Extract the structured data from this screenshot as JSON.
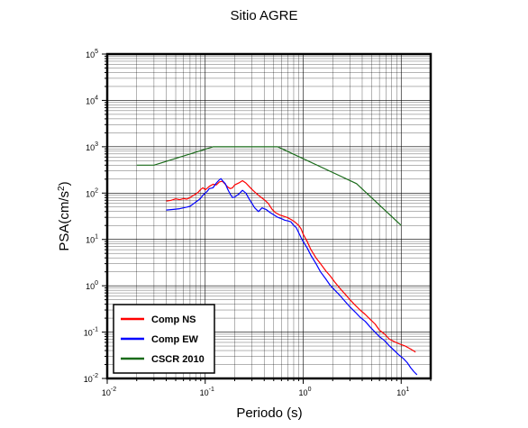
{
  "chart_data": {
    "type": "line",
    "title": "Sitio AGRE",
    "xlabel": "Periodo (s)",
    "ylabel_base": "PSA(cm/s",
    "ylabel_sup": "2",
    "ylabel_close": ")",
    "x_scale": "log",
    "y_scale": "log",
    "xlim": [
      0.01,
      20
    ],
    "ylim": [
      0.01,
      100000
    ],
    "grid": true,
    "legend_placement": "bottom-left",
    "x_ticks": [
      {
        "value": 0.01,
        "base": "10",
        "exp": "-2"
      },
      {
        "value": 0.1,
        "base": "10",
        "exp": "-1"
      },
      {
        "value": 1,
        "base": "10",
        "exp": "0"
      },
      {
        "value": 10,
        "base": "10",
        "exp": "1"
      }
    ],
    "y_ticks": [
      {
        "value": 0.01,
        "base": "10",
        "exp": "-2"
      },
      {
        "value": 0.1,
        "base": "10",
        "exp": "-1"
      },
      {
        "value": 1,
        "base": "10",
        "exp": "0"
      },
      {
        "value": 10,
        "base": "10",
        "exp": "1"
      },
      {
        "value": 100,
        "base": "10",
        "exp": "2"
      },
      {
        "value": 1000,
        "base": "10",
        "exp": "3"
      },
      {
        "value": 10000,
        "base": "10",
        "exp": "4"
      },
      {
        "value": 100000,
        "base": "10",
        "exp": "5"
      }
    ],
    "series": [
      {
        "name": "Comp NS",
        "color": "#ff0000",
        "points": [
          [
            0.04,
            67
          ],
          [
            0.045,
            70
          ],
          [
            0.05,
            75
          ],
          [
            0.055,
            72
          ],
          [
            0.06,
            76
          ],
          [
            0.065,
            74
          ],
          [
            0.07,
            80
          ],
          [
            0.075,
            88
          ],
          [
            0.08,
            95
          ],
          [
            0.085,
            105
          ],
          [
            0.09,
            120
          ],
          [
            0.095,
            130
          ],
          [
            0.1,
            118
          ],
          [
            0.105,
            128
          ],
          [
            0.11,
            140
          ],
          [
            0.12,
            155
          ],
          [
            0.13,
            150
          ],
          [
            0.14,
            175
          ],
          [
            0.15,
            180
          ],
          [
            0.16,
            155
          ],
          [
            0.17,
            135
          ],
          [
            0.18,
            125
          ],
          [
            0.19,
            130
          ],
          [
            0.2,
            150
          ],
          [
            0.22,
            165
          ],
          [
            0.24,
            185
          ],
          [
            0.26,
            165
          ],
          [
            0.28,
            140
          ],
          [
            0.3,
            120
          ],
          [
            0.33,
            100
          ],
          [
            0.36,
            85
          ],
          [
            0.4,
            72
          ],
          [
            0.44,
            60
          ],
          [
            0.48,
            45
          ],
          [
            0.52,
            38
          ],
          [
            0.57,
            34
          ],
          [
            0.62,
            32
          ],
          [
            0.68,
            30
          ],
          [
            0.75,
            27
          ],
          [
            0.82,
            24
          ],
          [
            0.9,
            20
          ],
          [
            0.95,
            17
          ],
          [
            1.0,
            13
          ],
          [
            1.1,
            9
          ],
          [
            1.2,
            6
          ],
          [
            1.35,
            4
          ],
          [
            1.5,
            3
          ],
          [
            1.7,
            2.1
          ],
          [
            1.9,
            1.6
          ],
          [
            2.1,
            1.2
          ],
          [
            2.4,
            0.85
          ],
          [
            2.7,
            0.65
          ],
          [
            3.0,
            0.5
          ],
          [
            3.4,
            0.38
          ],
          [
            3.8,
            0.3
          ],
          [
            4.3,
            0.24
          ],
          [
            4.8,
            0.19
          ],
          [
            5.4,
            0.15
          ],
          [
            6.0,
            0.11
          ],
          [
            6.8,
            0.09
          ],
          [
            7.6,
            0.07
          ],
          [
            8.5,
            0.062
          ],
          [
            9.5,
            0.056
          ],
          [
            11,
            0.05
          ],
          [
            12.5,
            0.043
          ],
          [
            14,
            0.037
          ]
        ]
      },
      {
        "name": "Comp EW",
        "color": "#0000ff",
        "points": [
          [
            0.04,
            43
          ],
          [
            0.045,
            44
          ],
          [
            0.05,
            45
          ],
          [
            0.055,
            46
          ],
          [
            0.06,
            48
          ],
          [
            0.065,
            50
          ],
          [
            0.07,
            52
          ],
          [
            0.075,
            58
          ],
          [
            0.08,
            64
          ],
          [
            0.085,
            70
          ],
          [
            0.09,
            78
          ],
          [
            0.095,
            90
          ],
          [
            0.1,
            100
          ],
          [
            0.105,
            110
          ],
          [
            0.11,
            125
          ],
          [
            0.12,
            130
          ],
          [
            0.13,
            165
          ],
          [
            0.14,
            195
          ],
          [
            0.145,
            205
          ],
          [
            0.15,
            185
          ],
          [
            0.16,
            160
          ],
          [
            0.17,
            120
          ],
          [
            0.18,
            95
          ],
          [
            0.19,
            80
          ],
          [
            0.2,
            82
          ],
          [
            0.22,
            95
          ],
          [
            0.24,
            115
          ],
          [
            0.26,
            100
          ],
          [
            0.28,
            75
          ],
          [
            0.3,
            60
          ],
          [
            0.32,
            48
          ],
          [
            0.35,
            40
          ],
          [
            0.38,
            48
          ],
          [
            0.42,
            44
          ],
          [
            0.46,
            38
          ],
          [
            0.5,
            34
          ],
          [
            0.55,
            30
          ],
          [
            0.6,
            28
          ],
          [
            0.65,
            26
          ],
          [
            0.7,
            25
          ],
          [
            0.75,
            24
          ],
          [
            0.8,
            20
          ],
          [
            0.85,
            18
          ],
          [
            0.9,
            14
          ],
          [
            0.95,
            11
          ],
          [
            1.0,
            9
          ],
          [
            1.1,
            6.5
          ],
          [
            1.2,
            4.5
          ],
          [
            1.35,
            3
          ],
          [
            1.5,
            2
          ],
          [
            1.7,
            1.4
          ],
          [
            1.9,
            1
          ],
          [
            2.1,
            0.8
          ],
          [
            2.4,
            0.6
          ],
          [
            2.7,
            0.45
          ],
          [
            3.0,
            0.35
          ],
          [
            3.4,
            0.27
          ],
          [
            3.8,
            0.21
          ],
          [
            4.3,
            0.17
          ],
          [
            4.8,
            0.13
          ],
          [
            5.4,
            0.1
          ],
          [
            6.0,
            0.08
          ],
          [
            6.8,
            0.065
          ],
          [
            7.6,
            0.05
          ],
          [
            8.5,
            0.04
          ],
          [
            9.5,
            0.032
          ],
          [
            10.5,
            0.027
          ],
          [
            11.5,
            0.022
          ],
          [
            12.5,
            0.017
          ],
          [
            13.5,
            0.014
          ],
          [
            14.5,
            0.012
          ]
        ]
      },
      {
        "name": "CSCR 2010",
        "color": "#1a6b1a",
        "points": [
          [
            0.02,
            400
          ],
          [
            0.03,
            400
          ],
          [
            0.12,
            1000
          ],
          [
            0.55,
            1000
          ],
          [
            3.5,
            160
          ],
          [
            10,
            20
          ]
        ]
      }
    ]
  }
}
